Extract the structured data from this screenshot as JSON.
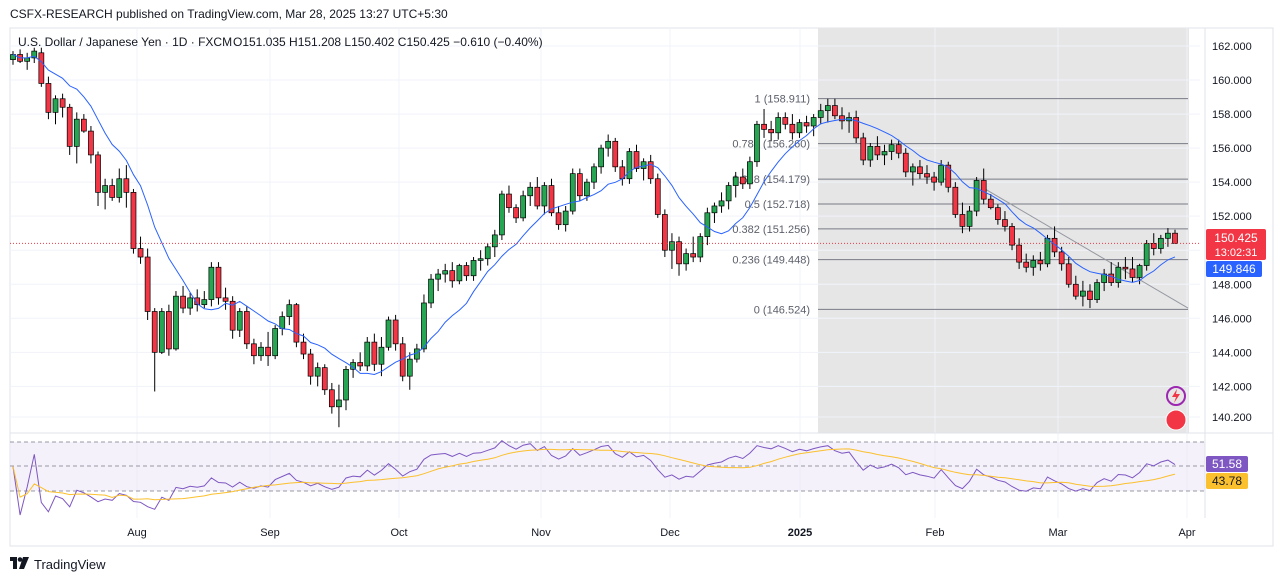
{
  "header": {
    "publisher": "CSFX-RESEARCH published on TradingView.com, Mar 28, 2025 13:27 UTC+5:30"
  },
  "footer": {
    "logo_icon": "tradingview-logo-icon",
    "brand": "TradingView"
  },
  "chart_data": {
    "type": "candlestick",
    "symbol_line": "U.S. Dollar / Japanese Yen · 1D · FXCM",
    "ohlc": {
      "open": "O151.035",
      "high": "H151.208",
      "low": "L150.402",
      "close": "C150.425",
      "change": "−0.610 (−0.40%)"
    },
    "y_axis": {
      "ticks": [
        "162.000",
        "160.000",
        "158.000",
        "156.000",
        "154.000",
        "152.000",
        "150.000",
        "148.000",
        "146.000",
        "144.000",
        "142.000",
        "140.200"
      ],
      "tick_values": [
        162,
        160,
        158,
        156,
        154,
        152,
        150,
        148,
        146,
        144,
        142,
        140.2
      ],
      "range": [
        139.5,
        162.4
      ]
    },
    "x_axis": {
      "labels": [
        "Aug",
        "Sep",
        "Oct",
        "Nov",
        "Dec",
        "2025",
        "Feb",
        "Mar",
        "Apr"
      ],
      "bold": [
        "2025"
      ]
    },
    "price_label": {
      "value": "150.425",
      "countdown": "13:02:31",
      "color": "#f23645"
    },
    "ma_label": {
      "value": "149.846",
      "color": "#2962ff"
    },
    "candles": [
      [
        161.2,
        161.7,
        160.9,
        161.5
      ],
      [
        161.5,
        161.8,
        161.0,
        161.1
      ],
      [
        161.1,
        161.6,
        160.6,
        161.3
      ],
      [
        161.3,
        161.9,
        161.0,
        161.7
      ],
      [
        161.6,
        161.9,
        159.6,
        159.8
      ],
      [
        159.8,
        160.2,
        157.7,
        158.1
      ],
      [
        158.1,
        159.1,
        157.4,
        158.9
      ],
      [
        158.9,
        159.2,
        157.8,
        158.4
      ],
      [
        158.4,
        158.6,
        155.6,
        156.1
      ],
      [
        156.1,
        158.1,
        155.1,
        157.7
      ],
      [
        157.7,
        158.0,
        156.9,
        157.0
      ],
      [
        157.0,
        157.3,
        155.1,
        155.6
      ],
      [
        155.6,
        155.8,
        152.6,
        153.4
      ],
      [
        153.4,
        154.2,
        152.4,
        153.8
      ],
      [
        153.8,
        154.2,
        152.9,
        153.1
      ],
      [
        153.1,
        154.8,
        152.8,
        154.2
      ],
      [
        154.2,
        155.0,
        152.5,
        153.4
      ],
      [
        153.4,
        153.6,
        149.8,
        150.1
      ],
      [
        150.1,
        150.8,
        149.2,
        149.6
      ],
      [
        149.6,
        150.1,
        145.9,
        146.4
      ],
      [
        146.4,
        146.6,
        141.7,
        144.0
      ],
      [
        144.0,
        146.6,
        143.9,
        146.4
      ],
      [
        146.4,
        146.8,
        143.8,
        144.2
      ],
      [
        144.2,
        147.6,
        144.1,
        147.3
      ],
      [
        147.3,
        147.9,
        146.3,
        146.6
      ],
      [
        146.6,
        147.5,
        146.2,
        147.2
      ],
      [
        147.2,
        147.7,
        146.4,
        146.8
      ],
      [
        146.8,
        147.6,
        146.6,
        147.1
      ],
      [
        147.1,
        149.3,
        146.7,
        149.0
      ],
      [
        149.0,
        149.3,
        146.8,
        147.2
      ],
      [
        147.2,
        147.8,
        146.5,
        147.0
      ],
      [
        147.0,
        147.3,
        144.8,
        145.3
      ],
      [
        145.3,
        146.6,
        144.9,
        146.4
      ],
      [
        146.4,
        146.7,
        144.2,
        144.5
      ],
      [
        144.5,
        144.8,
        143.3,
        143.8
      ],
      [
        143.8,
        144.6,
        143.5,
        144.3
      ],
      [
        144.3,
        145.2,
        143.2,
        143.8
      ],
      [
        143.8,
        145.6,
        143.6,
        145.4
      ],
      [
        145.4,
        146.4,
        145.0,
        146.1
      ],
      [
        146.1,
        147.1,
        145.6,
        146.8
      ],
      [
        146.8,
        146.9,
        144.3,
        144.6
      ],
      [
        144.6,
        145.1,
        143.6,
        143.9
      ],
      [
        143.9,
        144.2,
        142.1,
        142.6
      ],
      [
        142.6,
        143.4,
        142.0,
        143.1
      ],
      [
        143.1,
        143.3,
        141.5,
        141.8
      ],
      [
        141.8,
        142.2,
        140.4,
        140.8
      ],
      [
        140.8,
        142.1,
        139.6,
        141.2
      ],
      [
        141.2,
        143.2,
        140.6,
        143.0
      ],
      [
        143.0,
        143.6,
        142.5,
        143.4
      ],
      [
        143.4,
        144.0,
        142.9,
        143.2
      ],
      [
        143.2,
        144.9,
        142.9,
        144.6
      ],
      [
        144.6,
        145.1,
        142.9,
        143.3
      ],
      [
        143.3,
        144.9,
        142.6,
        144.3
      ],
      [
        144.3,
        146.1,
        144.1,
        145.9
      ],
      [
        145.9,
        146.2,
        144.1,
        144.5
      ],
      [
        144.5,
        144.9,
        142.3,
        142.6
      ],
      [
        142.6,
        144.0,
        141.8,
        143.6
      ],
      [
        143.6,
        144.5,
        143.4,
        144.2
      ],
      [
        144.2,
        147.4,
        144.0,
        146.9
      ],
      [
        146.9,
        148.6,
        146.6,
        148.3
      ],
      [
        148.3,
        148.9,
        147.6,
        148.6
      ],
      [
        148.6,
        149.2,
        148.1,
        148.8
      ],
      [
        148.8,
        149.3,
        147.8,
        148.2
      ],
      [
        148.2,
        149.2,
        148.0,
        149.1
      ],
      [
        149.1,
        149.3,
        148.2,
        148.5
      ],
      [
        148.5,
        149.6,
        148.2,
        149.4
      ],
      [
        149.4,
        150.0,
        148.8,
        149.5
      ],
      [
        149.5,
        150.4,
        149.1,
        150.2
      ],
      [
        150.2,
        151.2,
        149.6,
        150.9
      ],
      [
        150.9,
        153.5,
        150.6,
        153.3
      ],
      [
        153.3,
        153.8,
        152.2,
        152.5
      ],
      [
        152.5,
        152.7,
        151.6,
        151.9
      ],
      [
        151.9,
        153.5,
        151.7,
        153.2
      ],
      [
        153.2,
        154.0,
        152.6,
        153.7
      ],
      [
        153.7,
        154.3,
        152.4,
        152.6
      ],
      [
        152.6,
        154.0,
        152.1,
        153.8
      ],
      [
        153.8,
        154.2,
        152.0,
        152.2
      ],
      [
        152.2,
        152.6,
        151.2,
        151.5
      ],
      [
        151.5,
        152.6,
        151.1,
        152.3
      ],
      [
        152.3,
        154.8,
        152.1,
        154.5
      ],
      [
        154.5,
        154.8,
        152.9,
        153.2
      ],
      [
        153.2,
        154.2,
        152.9,
        154.0
      ],
      [
        154.0,
        155.1,
        153.6,
        154.9
      ],
      [
        154.9,
        156.2,
        154.5,
        156.0
      ],
      [
        156.0,
        156.8,
        155.5,
        156.4
      ],
      [
        156.4,
        156.6,
        154.6,
        154.9
      ],
      [
        154.9,
        155.3,
        153.8,
        154.2
      ],
      [
        154.2,
        156.0,
        153.9,
        155.8
      ],
      [
        155.8,
        156.2,
        154.6,
        154.8
      ],
      [
        154.8,
        155.4,
        154.1,
        155.2
      ],
      [
        155.2,
        155.6,
        153.9,
        154.2
      ],
      [
        154.2,
        154.5,
        151.9,
        152.1
      ],
      [
        152.1,
        152.4,
        149.6,
        150.0
      ],
      [
        150.0,
        151.0,
        148.9,
        150.5
      ],
      [
        150.5,
        150.8,
        148.5,
        149.2
      ],
      [
        149.2,
        150.1,
        148.8,
        149.8
      ],
      [
        149.8,
        150.8,
        149.3,
        149.6
      ],
      [
        149.6,
        151.0,
        149.3,
        150.8
      ],
      [
        150.8,
        152.5,
        150.3,
        152.2
      ],
      [
        152.2,
        152.8,
        151.6,
        152.6
      ],
      [
        152.6,
        153.4,
        152.2,
        152.9
      ],
      [
        152.9,
        154.0,
        152.4,
        153.8
      ],
      [
        153.8,
        154.6,
        153.1,
        154.3
      ],
      [
        154.3,
        154.8,
        153.6,
        153.9
      ],
      [
        153.9,
        155.5,
        153.6,
        155.2
      ],
      [
        155.2,
        157.6,
        154.9,
        157.4
      ],
      [
        157.4,
        158.3,
        156.6,
        157.1
      ],
      [
        157.1,
        157.6,
        156.4,
        156.9
      ],
      [
        156.9,
        158.1,
        156.5,
        157.8
      ],
      [
        157.8,
        158.1,
        157.1,
        157.4
      ],
      [
        157.4,
        158.0,
        156.5,
        156.9
      ],
      [
        156.9,
        157.7,
        156.6,
        157.5
      ],
      [
        157.5,
        157.9,
        156.9,
        157.3
      ],
      [
        157.3,
        158.0,
        156.7,
        157.8
      ],
      [
        157.8,
        158.6,
        157.4,
        158.2
      ],
      [
        158.2,
        158.9,
        157.5,
        158.5
      ],
      [
        158.5,
        158.9,
        157.7,
        157.9
      ],
      [
        157.9,
        158.4,
        157.1,
        157.6
      ],
      [
        157.6,
        158.1,
        156.9,
        157.8
      ],
      [
        157.8,
        158.2,
        156.3,
        156.6
      ],
      [
        156.6,
        156.9,
        155.0,
        155.3
      ],
      [
        155.3,
        156.3,
        154.9,
        156.1
      ],
      [
        156.1,
        156.7,
        155.3,
        155.6
      ],
      [
        155.6,
        156.2,
        155.0,
        155.8
      ],
      [
        155.8,
        156.5,
        155.3,
        156.2
      ],
      [
        156.2,
        156.5,
        155.4,
        155.7
      ],
      [
        155.7,
        156.0,
        154.3,
        154.6
      ],
      [
        154.6,
        155.1,
        153.8,
        154.9
      ],
      [
        154.9,
        155.3,
        154.2,
        154.5
      ],
      [
        154.5,
        155.0,
        153.9,
        154.3
      ],
      [
        154.3,
        154.6,
        153.5,
        154.0
      ],
      [
        154.0,
        155.3,
        153.8,
        155.0
      ],
      [
        155.0,
        155.2,
        153.4,
        153.7
      ],
      [
        153.7,
        154.0,
        151.9,
        152.1
      ],
      [
        152.1,
        152.8,
        151.0,
        151.4
      ],
      [
        151.4,
        152.6,
        151.1,
        152.3
      ],
      [
        152.3,
        154.3,
        152.0,
        154.1
      ],
      [
        154.1,
        154.8,
        152.7,
        153.0
      ],
      [
        153.0,
        153.3,
        152.4,
        152.5
      ],
      [
        152.5,
        152.7,
        151.5,
        151.8
      ],
      [
        151.8,
        152.3,
        151.1,
        151.4
      ],
      [
        151.4,
        151.6,
        150.0,
        150.3
      ],
      [
        150.3,
        150.7,
        148.9,
        149.3
      ],
      [
        149.3,
        149.8,
        148.7,
        149.0
      ],
      [
        149.0,
        149.7,
        148.5,
        149.4
      ],
      [
        149.4,
        149.9,
        148.8,
        149.2
      ],
      [
        149.2,
        150.9,
        149.0,
        150.7
      ],
      [
        150.7,
        151.4,
        149.6,
        149.9
      ],
      [
        149.9,
        150.2,
        148.8,
        149.2
      ],
      [
        149.2,
        149.6,
        147.8,
        148.0
      ],
      [
        148.0,
        148.5,
        147.1,
        147.3
      ],
      [
        147.3,
        148.2,
        146.7,
        147.6
      ],
      [
        147.6,
        148.0,
        146.6,
        147.1
      ],
      [
        147.1,
        148.3,
        146.9,
        148.1
      ],
      [
        148.1,
        148.9,
        147.6,
        148.6
      ],
      [
        148.6,
        149.3,
        147.9,
        148.1
      ],
      [
        148.1,
        149.3,
        147.8,
        149.0
      ],
      [
        149.0,
        149.6,
        148.3,
        148.9
      ],
      [
        148.9,
        149.6,
        148.1,
        148.4
      ],
      [
        148.4,
        149.2,
        148.0,
        149.1
      ],
      [
        149.1,
        150.6,
        148.8,
        150.4
      ],
      [
        150.4,
        151.0,
        149.7,
        150.1
      ],
      [
        150.1,
        150.9,
        149.8,
        150.7
      ],
      [
        150.7,
        151.3,
        150.2,
        151.0
      ],
      [
        151.0,
        151.2,
        150.4,
        150.4
      ]
    ]
  }
}
